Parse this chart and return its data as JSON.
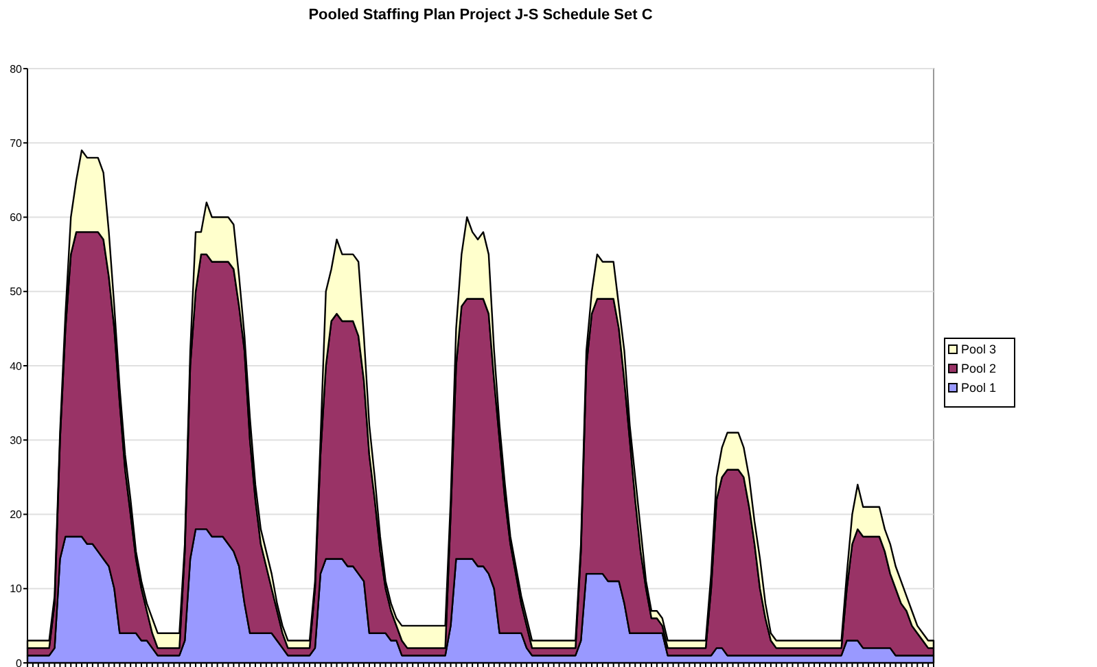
{
  "chart_data": {
    "type": "area",
    "stacked": true,
    "title": "Pooled Staffing Plan Project J-S Schedule Set C",
    "categories": [
      null,
      null,
      null,
      null,
      null,
      null,
      null,
      null,
      null,
      null,
      null,
      null,
      null,
      null,
      null,
      null,
      null,
      null,
      null,
      null,
      null,
      null,
      null,
      null,
      null,
      null,
      null,
      null,
      null,
      null,
      null,
      null,
      null,
      null,
      null,
      null,
      null,
      null,
      null,
      null,
      null,
      null,
      null,
      null,
      null,
      null,
      null,
      null,
      null,
      null,
      null,
      null,
      null,
      null,
      null,
      null,
      null,
      null,
      null,
      null,
      null,
      null,
      null,
      null,
      null,
      null,
      null,
      null,
      null,
      null,
      null,
      null,
      null,
      null,
      null,
      null,
      null,
      null,
      null,
      null,
      null,
      null,
      null,
      null,
      null,
      null,
      null,
      null,
      null,
      null,
      null,
      null,
      null,
      null,
      null,
      null,
      null,
      null,
      null,
      null,
      null,
      null,
      null,
      null,
      null,
      null,
      null,
      null,
      null,
      null,
      null,
      null,
      null,
      null,
      null,
      null,
      null,
      null,
      null,
      null,
      null,
      null,
      null,
      null,
      null,
      null,
      null,
      null,
      null,
      null,
      null,
      null,
      null,
      null,
      null,
      null,
      null,
      null,
      null,
      null,
      null,
      null,
      null,
      null,
      null,
      null,
      null,
      null,
      null,
      null,
      null,
      null,
      null,
      null,
      null,
      null,
      null,
      null,
      null,
      null,
      null,
      null,
      null,
      null,
      null,
      null,
      null,
      null
    ],
    "series": [
      {
        "name": "Pool 1",
        "color": "#9999ff",
        "values": [
          1,
          1,
          1,
          1,
          1,
          2,
          14,
          17,
          17,
          17,
          17,
          16,
          16,
          15,
          14,
          13,
          10,
          4,
          4,
          4,
          4,
          3,
          3,
          2,
          1,
          1,
          1,
          1,
          1,
          3,
          14,
          18,
          18,
          18,
          17,
          17,
          17,
          16,
          15,
          13,
          8,
          4,
          4,
          4,
          4,
          4,
          3,
          2,
          1,
          1,
          1,
          1,
          1,
          2,
          12,
          14,
          14,
          14,
          14,
          13,
          13,
          12,
          11,
          4,
          4,
          4,
          4,
          3,
          3,
          1,
          1,
          1,
          1,
          1,
          1,
          1,
          1,
          1,
          5,
          14,
          14,
          14,
          14,
          13,
          13,
          12,
          10,
          4,
          4,
          4,
          4,
          4,
          2,
          1,
          1,
          1,
          1,
          1,
          1,
          1,
          1,
          1,
          3,
          12,
          12,
          12,
          12,
          11,
          11,
          11,
          8,
          4,
          4,
          4,
          4,
          4,
          4,
          4,
          1,
          1,
          1,
          1,
          1,
          1,
          1,
          1,
          1,
          2,
          2,
          1,
          1,
          1,
          1,
          1,
          1,
          1,
          1,
          1,
          1,
          1,
          1,
          1,
          1,
          1,
          1,
          1,
          1,
          1,
          1,
          1,
          1,
          3,
          3,
          3,
          2,
          2,
          2,
          2,
          2,
          2,
          1,
          1,
          1,
          1,
          1,
          1,
          1,
          1
        ]
      },
      {
        "name": "Pool 2",
        "color": "#993366",
        "values": [
          1,
          1,
          1,
          1,
          1,
          6,
          16,
          28,
          38,
          41,
          41,
          42,
          42,
          43,
          43,
          39,
          35,
          31,
          22,
          16,
          10,
          7,
          4,
          2,
          1,
          1,
          1,
          1,
          1,
          12,
          26,
          32,
          37,
          37,
          37,
          37,
          37,
          38,
          38,
          35,
          34,
          26,
          18,
          12,
          9,
          6,
          4,
          2,
          1,
          1,
          1,
          1,
          1,
          8,
          16,
          26,
          32,
          33,
          32,
          33,
          33,
          32,
          27,
          24,
          18,
          11,
          6,
          4,
          2,
          2,
          1,
          1,
          1,
          1,
          1,
          1,
          1,
          1,
          15,
          26,
          34,
          35,
          35,
          36,
          36,
          35,
          28,
          26,
          18,
          12,
          8,
          4,
          3,
          1,
          1,
          1,
          1,
          1,
          1,
          1,
          1,
          1,
          12,
          28,
          35,
          37,
          37,
          38,
          38,
          34,
          30,
          26,
          18,
          11,
          6,
          2,
          2,
          1,
          1,
          1,
          1,
          1,
          1,
          1,
          1,
          1,
          9,
          20,
          23,
          25,
          25,
          25,
          24,
          20,
          15,
          9,
          5,
          2,
          1,
          1,
          1,
          1,
          1,
          1,
          1,
          1,
          1,
          1,
          1,
          1,
          1,
          7,
          13,
          15,
          15,
          15,
          15,
          15,
          13,
          10,
          9,
          7,
          6,
          4,
          3,
          2,
          1,
          1
        ]
      },
      {
        "name": "Pool 3",
        "color": "#ffffcc",
        "values": [
          1,
          1,
          1,
          1,
          1,
          1,
          1,
          2,
          5,
          7,
          11,
          10,
          10,
          10,
          9,
          6,
          3,
          2,
          2,
          2,
          1,
          1,
          1,
          2,
          2,
          2,
          2,
          2,
          2,
          1,
          2,
          8,
          3,
          7,
          6,
          6,
          6,
          6,
          6,
          4,
          2,
          3,
          2,
          2,
          2,
          2,
          1,
          1,
          1,
          1,
          1,
          1,
          1,
          1,
          2,
          10,
          7,
          10,
          9,
          9,
          9,
          10,
          6,
          4,
          3,
          2,
          1,
          1,
          1,
          2,
          3,
          3,
          3,
          3,
          3,
          3,
          3,
          3,
          2,
          5,
          7,
          11,
          9,
          8,
          9,
          8,
          4,
          2,
          2,
          1,
          1,
          1,
          1,
          1,
          1,
          1,
          1,
          1,
          1,
          1,
          1,
          1,
          1,
          2,
          3,
          6,
          5,
          5,
          5,
          3,
          4,
          2,
          3,
          3,
          1,
          1,
          1,
          1,
          1,
          1,
          1,
          1,
          1,
          1,
          1,
          1,
          2,
          3,
          4,
          5,
          5,
          5,
          4,
          4,
          3,
          4,
          2,
          1,
          1,
          1,
          1,
          1,
          1,
          1,
          1,
          1,
          1,
          1,
          1,
          1,
          1,
          2,
          4,
          6,
          4,
          4,
          4,
          4,
          3,
          4,
          3,
          3,
          2,
          2,
          1,
          1,
          1,
          1
        ]
      }
    ],
    "ylim": [
      0,
      80
    ],
    "yticks": [
      0,
      10,
      20,
      30,
      40,
      50,
      60,
      70,
      80
    ],
    "grid": "y",
    "legend": "right"
  }
}
